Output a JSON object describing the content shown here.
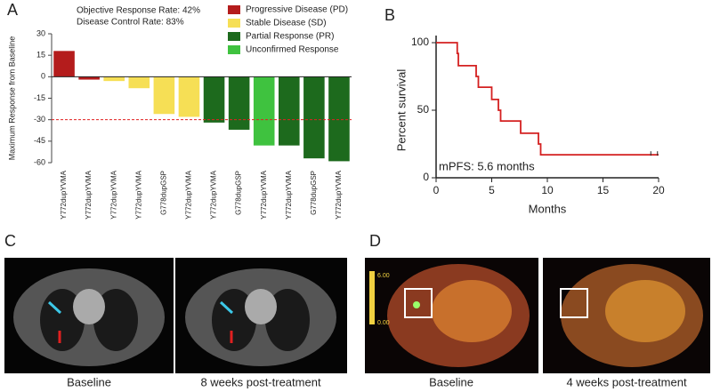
{
  "chart_data": [
    {
      "type": "bar",
      "panel_label": "A",
      "ylabel": "Maximum Response from  Baseline",
      "annotations": [
        "Objective Response Rate: 42%",
        "Disease Control Rate: 83%"
      ],
      "categories": [
        "Y772dupYVMA",
        "Y772dupYVMA",
        "Y772dupYVMA",
        "Y772dupYVMA",
        "G778dupGSP",
        "Y772dupYVMA",
        "Y772dupYVMA",
        "G778dupGSP",
        "Y772dupYVMA",
        "Y772dupYVMA",
        "G778dupGSP",
        "Y772dupYVMA"
      ],
      "series": [
        {
          "name": "Progressive Disease (PD)",
          "color": "#b41c1c",
          "values": [
            18,
            -2,
            null,
            null,
            null,
            null,
            null,
            null,
            null,
            null,
            null,
            null
          ]
        },
        {
          "name": "Stable Disease (SD)",
          "color": "#f6df55",
          "values": [
            null,
            null,
            -3,
            -8,
            -26,
            -28,
            null,
            null,
            null,
            null,
            null,
            null
          ]
        },
        {
          "name": "Partial Response (PR)",
          "color": "#1d6a1d",
          "values": [
            null,
            null,
            null,
            null,
            null,
            null,
            -32,
            -37,
            null,
            -48,
            -57,
            -59
          ]
        },
        {
          "name": "Unconfirmed Response",
          "color": "#3fc23f",
          "values": [
            null,
            null,
            null,
            null,
            null,
            null,
            null,
            null,
            -48,
            null,
            null,
            null
          ]
        }
      ],
      "hline": -30,
      "hline_color": "#e02020",
      "ylim": [
        -60,
        30
      ],
      "yticks": [
        -60,
        -45,
        -30,
        -15,
        0,
        15,
        30
      ]
    },
    {
      "type": "line",
      "panel_label": "B",
      "xlabel": "Months",
      "ylabel": "Percent survival",
      "annotation": "mPFS: 5.6 months",
      "x": [
        0,
        1.9,
        2.0,
        3.6,
        3.8,
        5.0,
        5.6,
        5.8,
        7.6,
        9.2,
        9.4,
        20
      ],
      "values": [
        100,
        92,
        83,
        75,
        67,
        58,
        50,
        42,
        33,
        25,
        17,
        17
      ],
      "color": "#d42020",
      "censored": {
        "x": [
          19.3,
          19.9
        ],
        "values": [
          17,
          17
        ]
      },
      "xlim": [
        0,
        20
      ],
      "xticks": [
        0,
        5,
        10,
        15,
        20
      ],
      "ylim": [
        0,
        100
      ],
      "yticks": [
        0,
        50,
        100
      ]
    }
  ],
  "panels": [
    {
      "label": "C",
      "captions": [
        "Baseline",
        "8 weeks post-treatment"
      ]
    },
    {
      "label": "D",
      "captions": [
        "Baseline",
        "4 weeks post-treatment"
      ],
      "scale": [
        "6.00",
        "0.00"
      ]
    }
  ]
}
